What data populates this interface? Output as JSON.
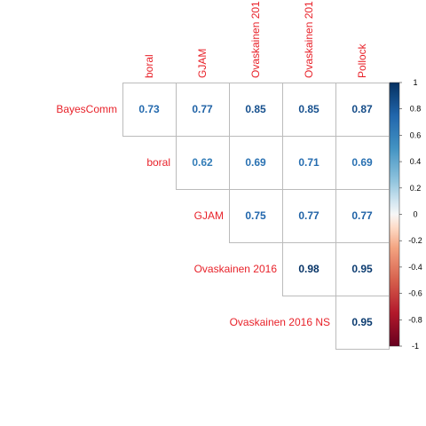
{
  "chart_data": {
    "type": "heatmap",
    "subtype": "correlation-matrix-upper",
    "row_labels": [
      "BayesComm",
      "boral",
      "GJAM",
      "Ovaskainen 2016",
      "Ovaskainen 2016 NS"
    ],
    "col_labels": [
      "boral",
      "GJAM",
      "Ovaskainen 201",
      "Ovaskainen 201",
      "Pollock"
    ],
    "matrix": [
      [
        0.73,
        0.77,
        0.85,
        0.85,
        0.87
      ],
      [
        null,
        0.62,
        0.69,
        0.71,
        0.69
      ],
      [
        null,
        null,
        0.75,
        0.77,
        0.77
      ],
      [
        null,
        null,
        null,
        0.98,
        0.95
      ],
      [
        null,
        null,
        null,
        null,
        0.95
      ]
    ],
    "value_range": [
      -1,
      1
    ],
    "colorbar_ticks": [
      "1",
      "0.8",
      "0.6",
      "0.4",
      "0.2",
      "0",
      "-0.2",
      "-0.4",
      "-0.6",
      "-0.8",
      "-1"
    ],
    "colorbar_values": [
      1,
      0.8,
      0.6,
      0.4,
      0.2,
      0,
      -0.2,
      -0.4,
      -0.6,
      -0.8,
      -1
    ],
    "colors": {
      "label": "#e8222a",
      "grid": "#bbbbbb",
      "scale_negative_end": "#67001f",
      "scale_mid": "#f7f7f7",
      "scale_positive_end": "#053061"
    },
    "legend_position": "right"
  }
}
